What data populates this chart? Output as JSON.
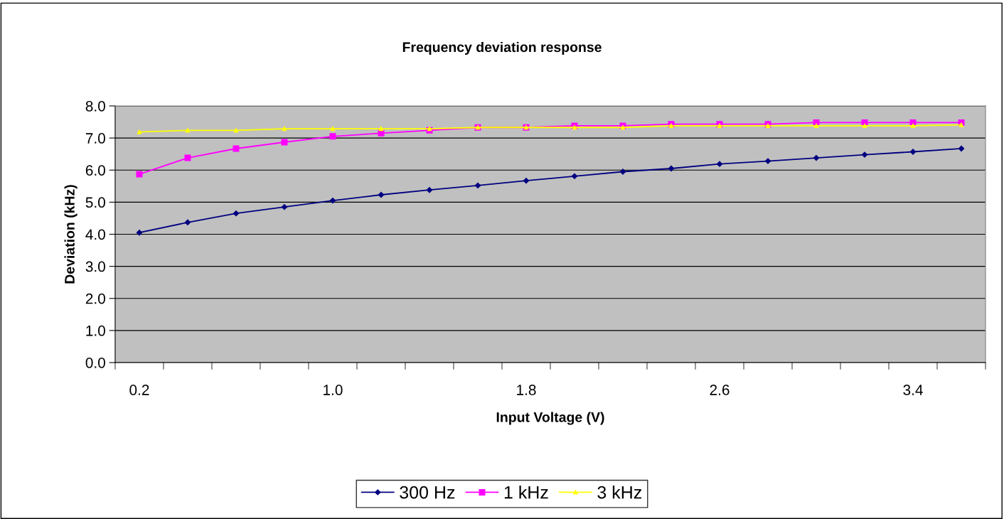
{
  "chart_data": {
    "type": "line",
    "title": "Frequency deviation response",
    "xlabel": "Input Voltage (V)",
    "ylabel": "Deviation (kHz)",
    "categories": [
      "0.2",
      null,
      null,
      null,
      "1.0",
      null,
      null,
      null,
      "1.8",
      null,
      null,
      null,
      "2.6",
      null,
      null,
      null,
      "3.4",
      null
    ],
    "series": [
      {
        "name": "300 Hz",
        "color": "#000080",
        "marker": "diamond",
        "values": [
          4.05,
          4.37,
          4.65,
          4.85,
          5.05,
          5.23,
          5.38,
          5.52,
          5.67,
          5.81,
          5.95,
          6.05,
          6.19,
          6.28,
          6.38,
          6.48,
          6.57,
          6.67
        ]
      },
      {
        "name": "1 kHz",
        "color": "#ff00ff",
        "marker": "square",
        "values": [
          5.87,
          6.38,
          6.67,
          6.87,
          7.05,
          7.15,
          7.24,
          7.33,
          7.33,
          7.38,
          7.38,
          7.43,
          7.43,
          7.43,
          7.48,
          7.48,
          7.48,
          7.48
        ]
      },
      {
        "name": "3 kHz",
        "color": "#ffff00",
        "marker": "triangle",
        "values": [
          7.19,
          7.24,
          7.24,
          7.29,
          7.29,
          7.29,
          7.29,
          7.33,
          7.33,
          7.33,
          7.33,
          7.38,
          7.38,
          7.38,
          7.38,
          7.38,
          7.38,
          7.41
        ]
      }
    ],
    "ylim": [
      0,
      8
    ],
    "yticks": [
      {
        "value": 0,
        "label": "0.0"
      },
      {
        "value": 1,
        "label": "1.0"
      },
      {
        "value": 2,
        "label": "2.0"
      },
      {
        "value": 3,
        "label": "3.0"
      },
      {
        "value": 4,
        "label": "4.0"
      },
      {
        "value": 5,
        "label": "5.0"
      },
      {
        "value": 6,
        "label": "6.0"
      },
      {
        "value": 7,
        "label": "7.0"
      },
      {
        "value": 8,
        "label": "8.0"
      }
    ],
    "grid": "y",
    "legend": "bottom",
    "line_style": "solid"
  }
}
